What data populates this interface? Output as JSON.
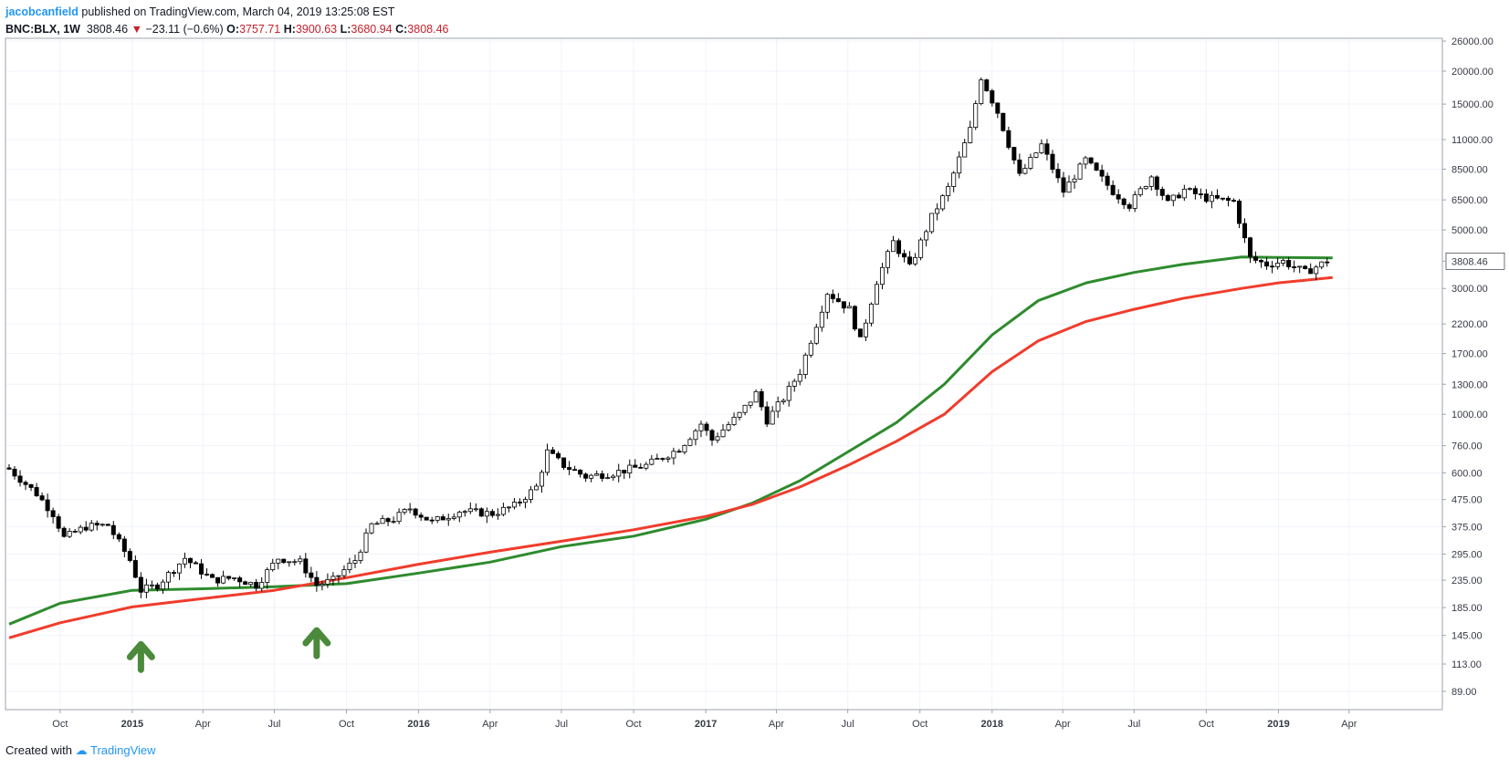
{
  "header": {
    "author": "jacobcanfield",
    "published": "published on TradingView.com, March 04, 2019 13:25:08 EST",
    "symbol": "BNC:BLX, 1W",
    "last": "3808.46",
    "change": "−23.11 (−0.6%)",
    "o_label": "O:",
    "o": "3757.71",
    "h_label": "H:",
    "h": "3900.63",
    "l_label": "L:",
    "l": "3680.94",
    "c_label": "C:",
    "c": "3808.46"
  },
  "footer": {
    "created_with": "Created with",
    "brand": "TradingView"
  },
  "colors": {
    "green_ma": "#2e8b2e",
    "red_ma": "#f03c2c",
    "arrow": "#4a8a3a",
    "candle_up_fill": "#ffffff",
    "candle_down_fill": "#000000",
    "candle_stroke": "#000000",
    "price_tag_bg": "#ffffff"
  },
  "chart_data": {
    "type": "candlestick",
    "scale": "log",
    "interval": "1W",
    "ylim": [
      70,
      28000
    ],
    "y_ticks": [
      "26000.00",
      "20000.00",
      "15000.00",
      "11000.00",
      "8500.00",
      "6500.00",
      "5000.00",
      "3808.46",
      "3000.00",
      "2200.00",
      "1700.00",
      "1300.00",
      "1000.00",
      "760.00",
      "600.00",
      "475.00",
      "375.00",
      "295.00",
      "235.00",
      "185.00",
      "145.00",
      "113.00",
      "89.00"
    ],
    "x_ticks": [
      {
        "label": "Oct",
        "bold": false
      },
      {
        "label": "2015",
        "bold": true
      },
      {
        "label": "Apr",
        "bold": false
      },
      {
        "label": "Jul",
        "bold": false
      },
      {
        "label": "Oct",
        "bold": false
      },
      {
        "label": "2016",
        "bold": true
      },
      {
        "label": "Apr",
        "bold": false
      },
      {
        "label": "Jul",
        "bold": false
      },
      {
        "label": "Oct",
        "bold": false
      },
      {
        "label": "2017",
        "bold": true
      },
      {
        "label": "Apr",
        "bold": false
      },
      {
        "label": "Jul",
        "bold": false
      },
      {
        "label": "Oct",
        "bold": false
      },
      {
        "label": "2018",
        "bold": true
      },
      {
        "label": "Apr",
        "bold": false
      },
      {
        "label": "Jul",
        "bold": false
      },
      {
        "label": "Oct",
        "bold": false
      },
      {
        "label": "2019",
        "bold": true
      },
      {
        "label": "Apr",
        "bold": false
      }
    ],
    "last_price_label": "3808.46",
    "anchors": [
      [
        "2014-07-28",
        620
      ],
      [
        "2014-09-01",
        500
      ],
      [
        "2014-09-22",
        420
      ],
      [
        "2014-10-06",
        340
      ],
      [
        "2014-11-03",
        375
      ],
      [
        "2014-12-01",
        380
      ],
      [
        "2014-12-29",
        280
      ],
      [
        "2015-01-12",
        215
      ],
      [
        "2015-02-02",
        225
      ],
      [
        "2015-03-09",
        285
      ],
      [
        "2015-04-13",
        235
      ],
      [
        "2015-05-11",
        240
      ],
      [
        "2015-06-08",
        225
      ],
      [
        "2015-07-06",
        285
      ],
      [
        "2015-08-03",
        275
      ],
      [
        "2015-08-24",
        225
      ],
      [
        "2015-09-14",
        235
      ],
      [
        "2015-10-12",
        280
      ],
      [
        "2015-11-02",
        380
      ],
      [
        "2015-11-30",
        400
      ],
      [
        "2015-12-21",
        440
      ],
      [
        "2016-01-18",
        390
      ],
      [
        "2016-02-22",
        430
      ],
      [
        "2016-04-04",
        420
      ],
      [
        "2016-05-02",
        450
      ],
      [
        "2016-05-30",
        530
      ],
      [
        "2016-06-13",
        720
      ],
      [
        "2016-07-04",
        640
      ],
      [
        "2016-08-01",
        580
      ],
      [
        "2016-09-05",
        600
      ],
      [
        "2016-10-17",
        640
      ],
      [
        "2016-11-28",
        740
      ],
      [
        "2016-12-26",
        920
      ],
      [
        "2017-01-09",
        800
      ],
      [
        "2017-02-13",
        1000
      ],
      [
        "2017-03-06",
        1200
      ],
      [
        "2017-03-20",
        950
      ],
      [
        "2017-04-10",
        1150
      ],
      [
        "2017-05-01",
        1450
      ],
      [
        "2017-05-22",
        2200
      ],
      [
        "2017-06-05",
        2900
      ],
      [
        "2017-07-03",
        2500
      ],
      [
        "2017-07-17",
        1900
      ],
      [
        "2017-08-07",
        3200
      ],
      [
        "2017-08-28",
        4500
      ],
      [
        "2017-09-18",
        3600
      ],
      [
        "2017-10-16",
        5600
      ],
      [
        "2017-11-06",
        7200
      ],
      [
        "2017-12-04",
        12000
      ],
      [
        "2017-12-18",
        19000
      ],
      [
        "2018-01-08",
        14000
      ],
      [
        "2018-02-05",
        8000
      ],
      [
        "2018-03-05",
        10500
      ],
      [
        "2018-04-02",
        7000
      ],
      [
        "2018-04-30",
        9200
      ],
      [
        "2018-06-04",
        7000
      ],
      [
        "2018-06-25",
        6200
      ],
      [
        "2018-07-23",
        8000
      ],
      [
        "2018-08-13",
        6300
      ],
      [
        "2018-09-03",
        7100
      ],
      [
        "2018-10-01",
        6600
      ],
      [
        "2018-11-05",
        6400
      ],
      [
        "2018-11-26",
        3900
      ],
      [
        "2018-12-17",
        3700
      ],
      [
        "2019-01-07",
        3800
      ],
      [
        "2019-02-04",
        3450
      ],
      [
        "2019-03-04",
        3808
      ]
    ],
    "series": [
      {
        "name": "",
        "color": "#2e8b2e",
        "points": [
          [
            "2014-07-28",
            160
          ],
          [
            "2014-10-01",
            192
          ],
          [
            "2015-01-01",
            215
          ],
          [
            "2015-04-01",
            218
          ],
          [
            "2015-07-01",
            222
          ],
          [
            "2015-10-01",
            228
          ],
          [
            "2016-01-01",
            250
          ],
          [
            "2016-04-01",
            275
          ],
          [
            "2016-07-01",
            315
          ],
          [
            "2016-10-01",
            345
          ],
          [
            "2017-01-01",
            400
          ],
          [
            "2017-03-01",
            460
          ],
          [
            "2017-05-01",
            560
          ],
          [
            "2017-07-01",
            720
          ],
          [
            "2017-09-01",
            930
          ],
          [
            "2017-11-01",
            1300
          ],
          [
            "2018-01-01",
            2000
          ],
          [
            "2018-03-01",
            2700
          ],
          [
            "2018-05-01",
            3150
          ],
          [
            "2018-07-01",
            3450
          ],
          [
            "2018-09-01",
            3700
          ],
          [
            "2018-11-15",
            3950
          ],
          [
            "2019-01-01",
            3930
          ],
          [
            "2019-03-11",
            3920
          ]
        ]
      },
      {
        "name": "",
        "color": "#f03c2c",
        "points": [
          [
            "2014-07-28",
            142
          ],
          [
            "2014-10-01",
            162
          ],
          [
            "2015-01-01",
            186
          ],
          [
            "2015-04-01",
            200
          ],
          [
            "2015-07-01",
            215
          ],
          [
            "2015-10-01",
            240
          ],
          [
            "2016-01-01",
            270
          ],
          [
            "2016-04-01",
            300
          ],
          [
            "2016-07-01",
            330
          ],
          [
            "2016-10-01",
            365
          ],
          [
            "2017-01-01",
            410
          ],
          [
            "2017-03-01",
            455
          ],
          [
            "2017-05-01",
            530
          ],
          [
            "2017-07-01",
            640
          ],
          [
            "2017-09-01",
            790
          ],
          [
            "2017-11-01",
            1000
          ],
          [
            "2018-01-01",
            1450
          ],
          [
            "2018-03-01",
            1900
          ],
          [
            "2018-05-01",
            2250
          ],
          [
            "2018-07-01",
            2500
          ],
          [
            "2018-09-01",
            2750
          ],
          [
            "2018-11-15",
            3000
          ],
          [
            "2019-01-01",
            3150
          ],
          [
            "2019-03-11",
            3300
          ]
        ]
      }
    ],
    "annotations": [
      {
        "type": "arrow-up",
        "date": "2015-01-12",
        "price": 155
      },
      {
        "type": "arrow-up",
        "date": "2015-08-24",
        "price": 175
      }
    ]
  }
}
